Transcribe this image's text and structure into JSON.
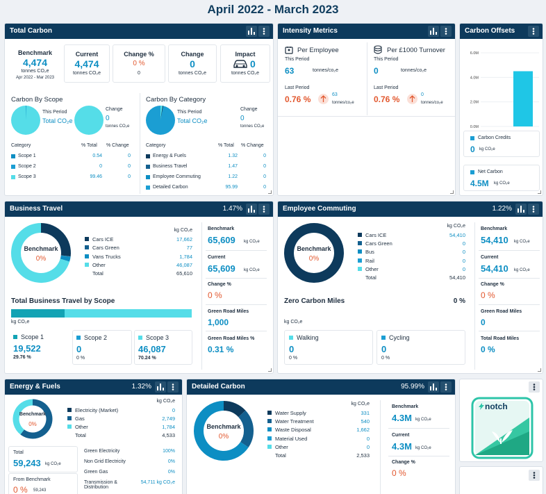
{
  "page": {
    "title": "April 2022 - March 2023"
  },
  "colors": {
    "navy": "#0d3a5c",
    "blue": "#0d8ec3",
    "orange": "#e2582f",
    "cyan": "#55dde8",
    "mid": "#1b9ed3"
  },
  "total_carbon": {
    "title": "Total Carbon",
    "benchmark": {
      "label": "Benchmark",
      "value": "4,474",
      "unit": "tonnes CO₂e",
      "sub": "Apr 2022 - Mar 2023"
    },
    "current": {
      "label": "Current",
      "value": "4,474",
      "unit": "tonnes CO₂e"
    },
    "change_pct": {
      "label": "Change %",
      "value": "0 %",
      "sub": "0"
    },
    "change": {
      "label": "Change",
      "value": "0",
      "unit": "tonnes CO₂e"
    },
    "impact": {
      "label": "Impact",
      "value": "0",
      "unit": "tonnes CO₂e"
    },
    "scope": {
      "title": "Carbon By Scope",
      "this_period": "This Period",
      "total": "Total CO₂e",
      "change_label": "Change",
      "change_value": "0",
      "change_unit": "tonnes CO₂e",
      "headers": [
        "Category",
        "% Total",
        "% Change"
      ],
      "rows": [
        {
          "name": "Scope 1",
          "total": "0.54",
          "change": "0",
          "color": "#0d8ec3"
        },
        {
          "name": "Scope 2",
          "total": "0",
          "change": "0",
          "color": "#1b9ed3"
        },
        {
          "name": "Scope 3",
          "total": "99.46",
          "change": "0",
          "color": "#55dde8"
        }
      ]
    },
    "category": {
      "title": "Carbon By Category",
      "this_period": "This Period",
      "total": "Total CO₂e",
      "change_label": "Change",
      "change_value": "0",
      "change_unit": "tonnes CO₂e",
      "headers": [
        "Category",
        "% Total",
        "% Change"
      ],
      "rows": [
        {
          "name": "Energy & Fuels",
          "total": "1.32",
          "change": "0",
          "color": "#0d3a5c"
        },
        {
          "name": "Business Travel",
          "total": "1.47",
          "change": "0",
          "color": "#14608f"
        },
        {
          "name": "Employee Commuting",
          "total": "1.22",
          "change": "0",
          "color": "#0d8ec3"
        },
        {
          "name": "Detailed Carbon",
          "total": "95.99",
          "change": "0",
          "color": "#1b9ed3"
        }
      ]
    }
  },
  "intensity": {
    "title": "Intensity Metrics",
    "employee": {
      "label": "Per Employee",
      "this_period": "This Period",
      "value": "63",
      "unit": "tonnes/co₂e",
      "last_period": "Last Period",
      "pct": "0.76 %",
      "last_value": "63",
      "last_unit": "tonnes/co₂e"
    },
    "turnover": {
      "label": "Per £1000 Turnover",
      "this_period": "This Period",
      "value": "0",
      "unit": "tonnes/co₂e",
      "last_period": "Last Period",
      "pct": "0.76 %",
      "last_value": "0",
      "last_unit": "tonnes/co₂e"
    }
  },
  "offsets": {
    "title": "Carbon Offsets",
    "yticks": [
      "6.0M",
      "4.0M",
      "2.0M",
      "0.0M"
    ],
    "chart_data": {
      "type": "bar",
      "categories": [
        "Net Carbon"
      ],
      "values": [
        4.5
      ],
      "ylim": [
        0,
        6
      ],
      "ylabel": "",
      "xlabel": "",
      "title": ""
    },
    "credits_label": "Carbon Credits",
    "credits_value": "0",
    "credits_unit": "kg CO₂e",
    "net_label": "Net Carbon",
    "net_value": "4.5M",
    "net_unit": "kg CO₂e"
  },
  "business_travel": {
    "title": "Business Travel",
    "pct": "1.47%",
    "donut_label": "Benchmark",
    "donut_value": "0%",
    "unit_header": "kg CO₂e",
    "rows": [
      {
        "name": "Cars ICE",
        "value": "17,662",
        "color": "#0d3a5c"
      },
      {
        "name": "Cars Green",
        "value": "77",
        "color": "#14608f"
      },
      {
        "name": "Vans Trucks",
        "value": "1,784",
        "color": "#0d8ec3"
      },
      {
        "name": "Other",
        "value": "46,087",
        "color": "#55dde8"
      },
      {
        "name": "Total",
        "value": "65,610"
      }
    ],
    "scope_title": "Total Business Travel by Scope",
    "scope_unit": "kg CO₂e",
    "scopes": [
      {
        "label": "Scope 1",
        "value": "19,522",
        "pct": "29.76 %",
        "color": "#13a3b4"
      },
      {
        "label": "Scope 2",
        "value": "0",
        "pct": "0 %",
        "color": "#1b9ed3"
      },
      {
        "label": "Scope 3",
        "value": "46,087",
        "pct": "70.24 %",
        "color": "#55dde8"
      }
    ],
    "benchmark_label": "Benchmark",
    "benchmark_value": "65,609",
    "current_label": "Current",
    "current_value": "65,609",
    "unit": "kg CO₂e",
    "change_label": "Change %",
    "change_value": "0 %",
    "grm_label": "Green Road Miles",
    "grm_value": "1,000",
    "grmp_label": "Green Road Miles %",
    "grmp_value": "0.31 %"
  },
  "commuting": {
    "title": "Employee Commuting",
    "pct": "1.22%",
    "donut_label": "Benchmark",
    "donut_value": "0%",
    "unit_header": "kg CO₂e",
    "rows": [
      {
        "name": "Cars ICE",
        "value": "54,410",
        "color": "#0d3a5c"
      },
      {
        "name": "Cars Green",
        "value": "0",
        "color": "#14608f"
      },
      {
        "name": "Bus",
        "value": "0",
        "color": "#0d8ec3"
      },
      {
        "name": "Rail",
        "value": "0",
        "color": "#1b9ed3"
      },
      {
        "name": "Other",
        "value": "0",
        "color": "#55dde8"
      },
      {
        "name": "Total",
        "value": "54,410"
      }
    ],
    "zero_title": "Zero Carbon Miles",
    "zero_pct": "0 %",
    "zero_unit": "kg CO₂e",
    "walking": {
      "label": "Walking",
      "value": "0",
      "pct": "0 %"
    },
    "cycling": {
      "label": "Cycling",
      "value": "0",
      "pct": "0 %"
    },
    "benchmark_label": "Benchmark",
    "benchmark_value": "54,410",
    "current_label": "Current",
    "current_value": "54,410",
    "unit": "kg CO₂e",
    "change_label": "Change %",
    "change_value": "0 %",
    "grm_label": "Green Road Miles",
    "grm_value": "0",
    "trm_label": "Total Road Miles",
    "trm_value": "0 %"
  },
  "energy": {
    "title": "Energy & Fuels",
    "pct": "1.32%",
    "donut_label": "Benchmark",
    "donut_value": "0%",
    "unit_header": "kg CO₂e",
    "rows": [
      {
        "name": "Electricity (Market)",
        "value": "0",
        "color": "#0d3a5c"
      },
      {
        "name": "Gas",
        "value": "2,749",
        "color": "#14608f"
      },
      {
        "name": "Other",
        "value": "1,784",
        "color": "#55dde8"
      },
      {
        "name": "Total",
        "value": "4,533"
      }
    ],
    "total_label": "Total",
    "total_value": "59,243",
    "total_unit": "kg CO₂e",
    "from_label": "From Benchmark",
    "from_pct": "0 %",
    "from_value": "59,243",
    "list": [
      {
        "name": "Green Electricity",
        "value": "100%"
      },
      {
        "name": "Non Grid Electricity",
        "value": "0%"
      },
      {
        "name": "Green Gas",
        "value": "0%"
      },
      {
        "name": "Transmission & Distribution",
        "value": "54,711 kg CO₂e"
      }
    ]
  },
  "detailed": {
    "title": "Detailed Carbon",
    "pct": "95.99%",
    "donut_label": "Benchmark",
    "donut_value": "0%",
    "unit_header": "kg CO₂e",
    "rows": [
      {
        "name": "Water Supply",
        "value": "331",
        "color": "#0d3a5c"
      },
      {
        "name": "Water Treatment",
        "value": "540",
        "color": "#14608f"
      },
      {
        "name": "Waste Disposal",
        "value": "1,662",
        "color": "#0d8ec3"
      },
      {
        "name": "Material Used",
        "value": "0",
        "color": "#1b9ed3"
      },
      {
        "name": "Other",
        "value": "0",
        "color": "#55dde8"
      },
      {
        "name": "Total",
        "value": "2,533"
      }
    ],
    "benchmark_label": "Benchmark",
    "benchmark_value": "4.3M",
    "current_label": "Current",
    "current_value": "4.3M",
    "unit": "kg CO₂e",
    "change_label": "Change %",
    "change_value": "0 %"
  },
  "logo": {
    "text": "notch"
  }
}
